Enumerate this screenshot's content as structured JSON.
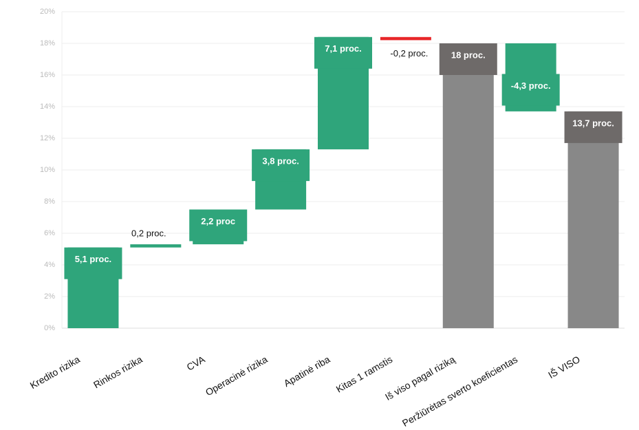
{
  "chart_data": {
    "type": "waterfall",
    "categories": [
      "Kredito rizika",
      "Rinkos rizika",
      "CVA",
      "Operacinė rizika",
      "Apatinė riba",
      "Kitas 1 ramstis",
      "Iš viso pagal riziką",
      "Peržiūrėtas sverto koeficientas",
      "IŠ VISO"
    ],
    "values": [
      5.1,
      0.2,
      2.2,
      3.8,
      7.1,
      -0.2,
      18,
      -4.3,
      13.7
    ],
    "value_labels": [
      "5,1 proc.",
      "0,2 proc.",
      "2,2 proc",
      "3,8 proc.",
      "7,1 proc.",
      "-0,2 proc.",
      "18 proc.",
      "-4,3 proc.",
      "13,7 proc."
    ],
    "is_total": [
      false,
      false,
      false,
      false,
      false,
      false,
      true,
      false,
      true
    ],
    "colors": [
      "#2fa57b",
      "#2fa57b",
      "#2fa57b",
      "#2fa57b",
      "#2fa57b",
      "#e8272a",
      "#888888",
      "#2fa57b",
      "#888888"
    ],
    "ylim": [
      0,
      20
    ],
    "yticks": [
      {
        "value": 0,
        "label": "0%"
      },
      {
        "value": 2,
        "label": "2%"
      },
      {
        "value": 4,
        "label": "4%"
      },
      {
        "value": 6,
        "label": "6%"
      },
      {
        "value": 8,
        "label": "8%"
      },
      {
        "value": 10,
        "label": "10%"
      },
      {
        "value": 12,
        "label": "12%"
      },
      {
        "value": 14,
        "label": "14%"
      },
      {
        "value": 16,
        "label": "16%"
      },
      {
        "value": 18,
        "label": "18%"
      },
      {
        "value": 20,
        "label": "20%"
      }
    ],
    "grid": true
  }
}
